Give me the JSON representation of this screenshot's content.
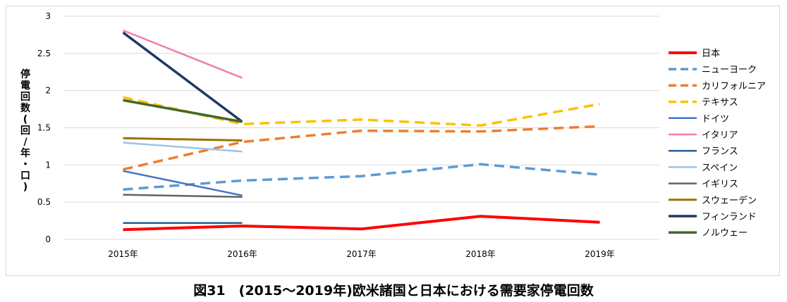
{
  "figure_caption": "図31　(2015～2019年)欧米諸国と日本における需要家停電回数",
  "chart_data": {
    "type": "line",
    "title": "",
    "ylabel": "停電回数(回/年・口)",
    "xlabel": "",
    "categories": [
      "2015年",
      "2016年",
      "2017年",
      "2018年",
      "2019年"
    ],
    "ylim": [
      0,
      3
    ],
    "yticks": [
      "0",
      "0.5",
      "1",
      "1.5",
      "2",
      "2.5",
      "3"
    ],
    "grid": "horizontal",
    "legend_position": "right",
    "series": [
      {
        "name": "日本",
        "values": [
          0.13,
          0.18,
          0.14,
          0.31,
          0.23
        ],
        "color": "#ff0000",
        "style": "solid",
        "width": 4
      },
      {
        "name": "ニューヨーク",
        "values": [
          0.67,
          0.79,
          0.85,
          1.01,
          0.87
        ],
        "color": "#5b9bd5",
        "style": "dashed",
        "width": 3.5
      },
      {
        "name": "カリフォルニア",
        "values": [
          0.94,
          1.31,
          1.46,
          1.45,
          1.52
        ],
        "color": "#ed7d31",
        "style": "dashed",
        "width": 3.5
      },
      {
        "name": "テキサス",
        "values": [
          1.91,
          1.55,
          1.61,
          1.53,
          1.82
        ],
        "color": "#ffc000",
        "style": "dashed",
        "width": 3.5
      },
      {
        "name": "ドイツ",
        "values": [
          0.92,
          0.59,
          null,
          null,
          null
        ],
        "color": "#4472c4",
        "style": "solid",
        "width": 2.5
      },
      {
        "name": "イタリア",
        "values": [
          2.81,
          2.17,
          null,
          null,
          null
        ],
        "color": "#f47cac",
        "style": "solid",
        "width": 2.5
      },
      {
        "name": "フランス",
        "values": [
          0.22,
          0.22,
          null,
          null,
          null
        ],
        "color": "#255e91",
        "style": "solid",
        "width": 2.5
      },
      {
        "name": "スペイン",
        "values": [
          1.3,
          1.18,
          null,
          null,
          null
        ],
        "color": "#9dc3e6",
        "style": "solid",
        "width": 2.5
      },
      {
        "name": "イギリス",
        "values": [
          0.6,
          0.57,
          null,
          null,
          null
        ],
        "color": "#636363",
        "style": "solid",
        "width": 2.5
      },
      {
        "name": "スウェーデン",
        "values": [
          1.36,
          1.33,
          null,
          null,
          null
        ],
        "color": "#997300",
        "style": "solid",
        "width": 3
      },
      {
        "name": "フィンランド",
        "values": [
          2.78,
          1.58,
          null,
          null,
          null
        ],
        "color": "#203864",
        "style": "solid",
        "width": 3.5
      },
      {
        "name": "ノルウェー",
        "values": [
          1.87,
          1.58,
          null,
          null,
          null
        ],
        "color": "#43682b",
        "style": "solid",
        "width": 3.5
      }
    ]
  }
}
